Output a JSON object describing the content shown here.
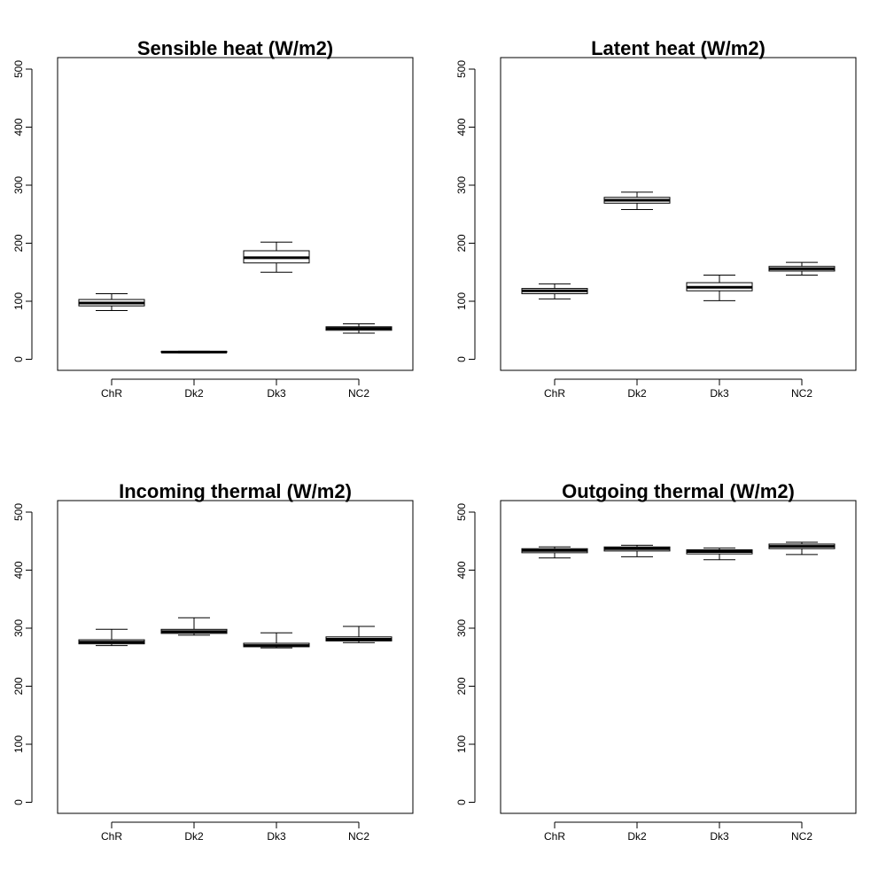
{
  "chart_data": [
    {
      "type": "box",
      "title": "Sensible heat (W/m2)",
      "categories": [
        "ChR",
        "Dk2",
        "Dk3",
        "NC2"
      ],
      "ylim": [
        0,
        520
      ],
      "yticks": [
        0,
        100,
        200,
        300,
        400,
        500
      ],
      "boxes": [
        {
          "min": 84,
          "q1": 92,
          "median": 97,
          "q3": 103,
          "max": 113
        },
        {
          "min": 11,
          "q1": 12,
          "median": 12.5,
          "q3": 13.5,
          "max": 14
        },
        {
          "min": 150,
          "q1": 166,
          "median": 175,
          "q3": 187,
          "max": 202
        },
        {
          "min": 45,
          "q1": 50,
          "median": 53,
          "q3": 56,
          "max": 61
        }
      ]
    },
    {
      "type": "box",
      "title": "Latent heat (W/m2)",
      "categories": [
        "ChR",
        "Dk2",
        "Dk3",
        "NC2"
      ],
      "ylim": [
        0,
        520
      ],
      "yticks": [
        0,
        100,
        200,
        300,
        400,
        500
      ],
      "boxes": [
        {
          "min": 104,
          "q1": 113,
          "median": 118,
          "q3": 122,
          "max": 130
        },
        {
          "min": 258,
          "q1": 269,
          "median": 274,
          "q3": 279,
          "max": 288
        },
        {
          "min": 101,
          "q1": 118,
          "median": 124,
          "q3": 132,
          "max": 145
        },
        {
          "min": 145,
          "q1": 152,
          "median": 156,
          "q3": 160,
          "max": 167
        }
      ]
    },
    {
      "type": "box",
      "title": "Incoming thermal (W/m2)",
      "categories": [
        "ChR",
        "Dk2",
        "Dk3",
        "NC2"
      ],
      "ylim": [
        0,
        520
      ],
      "yticks": [
        0,
        100,
        200,
        300,
        400,
        500
      ],
      "boxes": [
        {
          "min": 270,
          "q1": 273,
          "median": 276,
          "q3": 280,
          "max": 298
        },
        {
          "min": 288,
          "q1": 291,
          "median": 294,
          "q3": 298,
          "max": 318
        },
        {
          "min": 266,
          "q1": 268,
          "median": 270,
          "q3": 274,
          "max": 292
        },
        {
          "min": 275,
          "q1": 278,
          "median": 281,
          "q3": 285,
          "max": 303
        }
      ]
    },
    {
      "type": "box",
      "title": "Outgoing thermal (W/m2)",
      "categories": [
        "ChR",
        "Dk2",
        "Dk3",
        "NC2"
      ],
      "ylim": [
        0,
        520
      ],
      "yticks": [
        0,
        100,
        200,
        300,
        400,
        500
      ],
      "boxes": [
        {
          "min": 421,
          "q1": 430,
          "median": 434,
          "q3": 437,
          "max": 440
        },
        {
          "min": 423,
          "q1": 433,
          "median": 437,
          "q3": 440,
          "max": 443
        },
        {
          "min": 418,
          "q1": 428,
          "median": 432,
          "q3": 435,
          "max": 438
        },
        {
          "min": 427,
          "q1": 437,
          "median": 441,
          "q3": 445,
          "max": 448
        }
      ]
    }
  ]
}
